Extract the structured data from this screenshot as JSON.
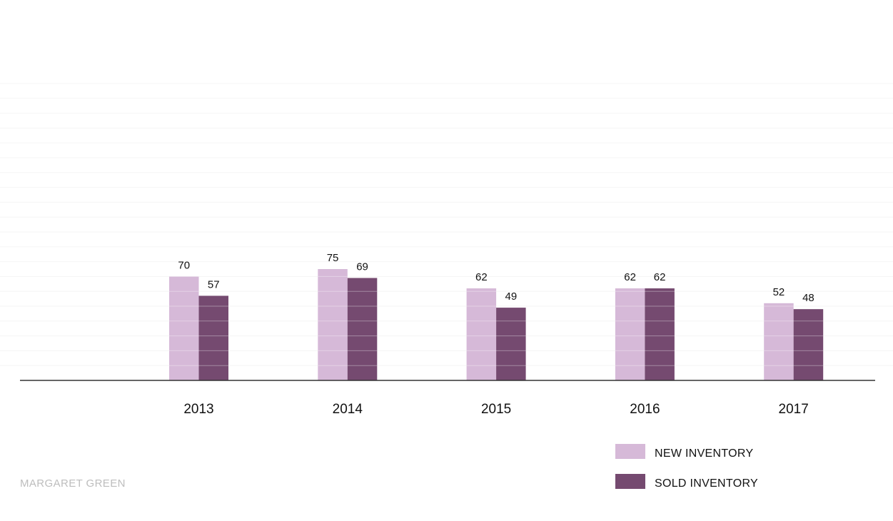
{
  "chart_data": {
    "type": "bar",
    "categories": [
      "2013",
      "2014",
      "2015",
      "2016",
      "2017"
    ],
    "series": [
      {
        "name": "NEW INVENTORY",
        "values": [
          70,
          75,
          62,
          62,
          52
        ],
        "color": "#d6b9d8"
      },
      {
        "name": "SOLD INVENTORY",
        "values": [
          57,
          69,
          49,
          62,
          48
        ],
        "color": "#754a70"
      }
    ],
    "title": "",
    "xlabel": "",
    "ylabel": "",
    "ylim": [
      0,
      200
    ],
    "grid": true,
    "legend_position": "bottom-right"
  },
  "watermark": "MARGARET GREEN"
}
